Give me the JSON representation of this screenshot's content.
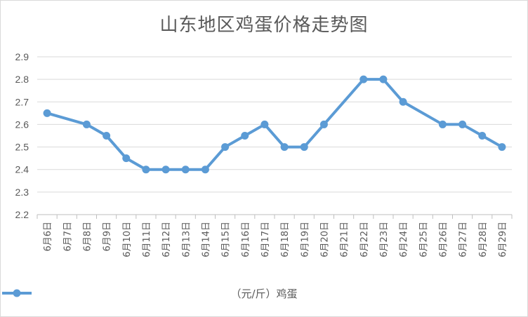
{
  "chart_data": {
    "type": "line",
    "title": "山东地区鸡蛋价格走势图",
    "categories": [
      "6月6日",
      "6月7日",
      "6月8日",
      "6月9日",
      "6月10日",
      "6月11日",
      "6月12日",
      "6月13日",
      "6月14日",
      "6月15日",
      "6月16日",
      "6月17日",
      "6月18日",
      "6月19日",
      "6月20日",
      "6月21日",
      "6月22日",
      "6月23日",
      "6月24日",
      "6月25日",
      "6月26日",
      "6月27日",
      "6月28日",
      "6月29日"
    ],
    "series": [
      {
        "name": "（元/斤）鸡蛋",
        "color": "#5b9bd5",
        "values": [
          2.65,
          null,
          2.6,
          2.55,
          2.45,
          2.4,
          2.4,
          2.4,
          2.4,
          2.5,
          2.55,
          2.6,
          2.5,
          2.5,
          2.6,
          null,
          2.8,
          2.8,
          2.7,
          null,
          2.6,
          2.6,
          2.55,
          2.5
        ]
      }
    ],
    "ylim": [
      2.2,
      2.9
    ],
    "yticks": [
      "2.2",
      "2.3",
      "2.4",
      "2.5",
      "2.6",
      "2.7",
      "2.8",
      "2.9"
    ],
    "grid": true,
    "legend": "bottom"
  }
}
